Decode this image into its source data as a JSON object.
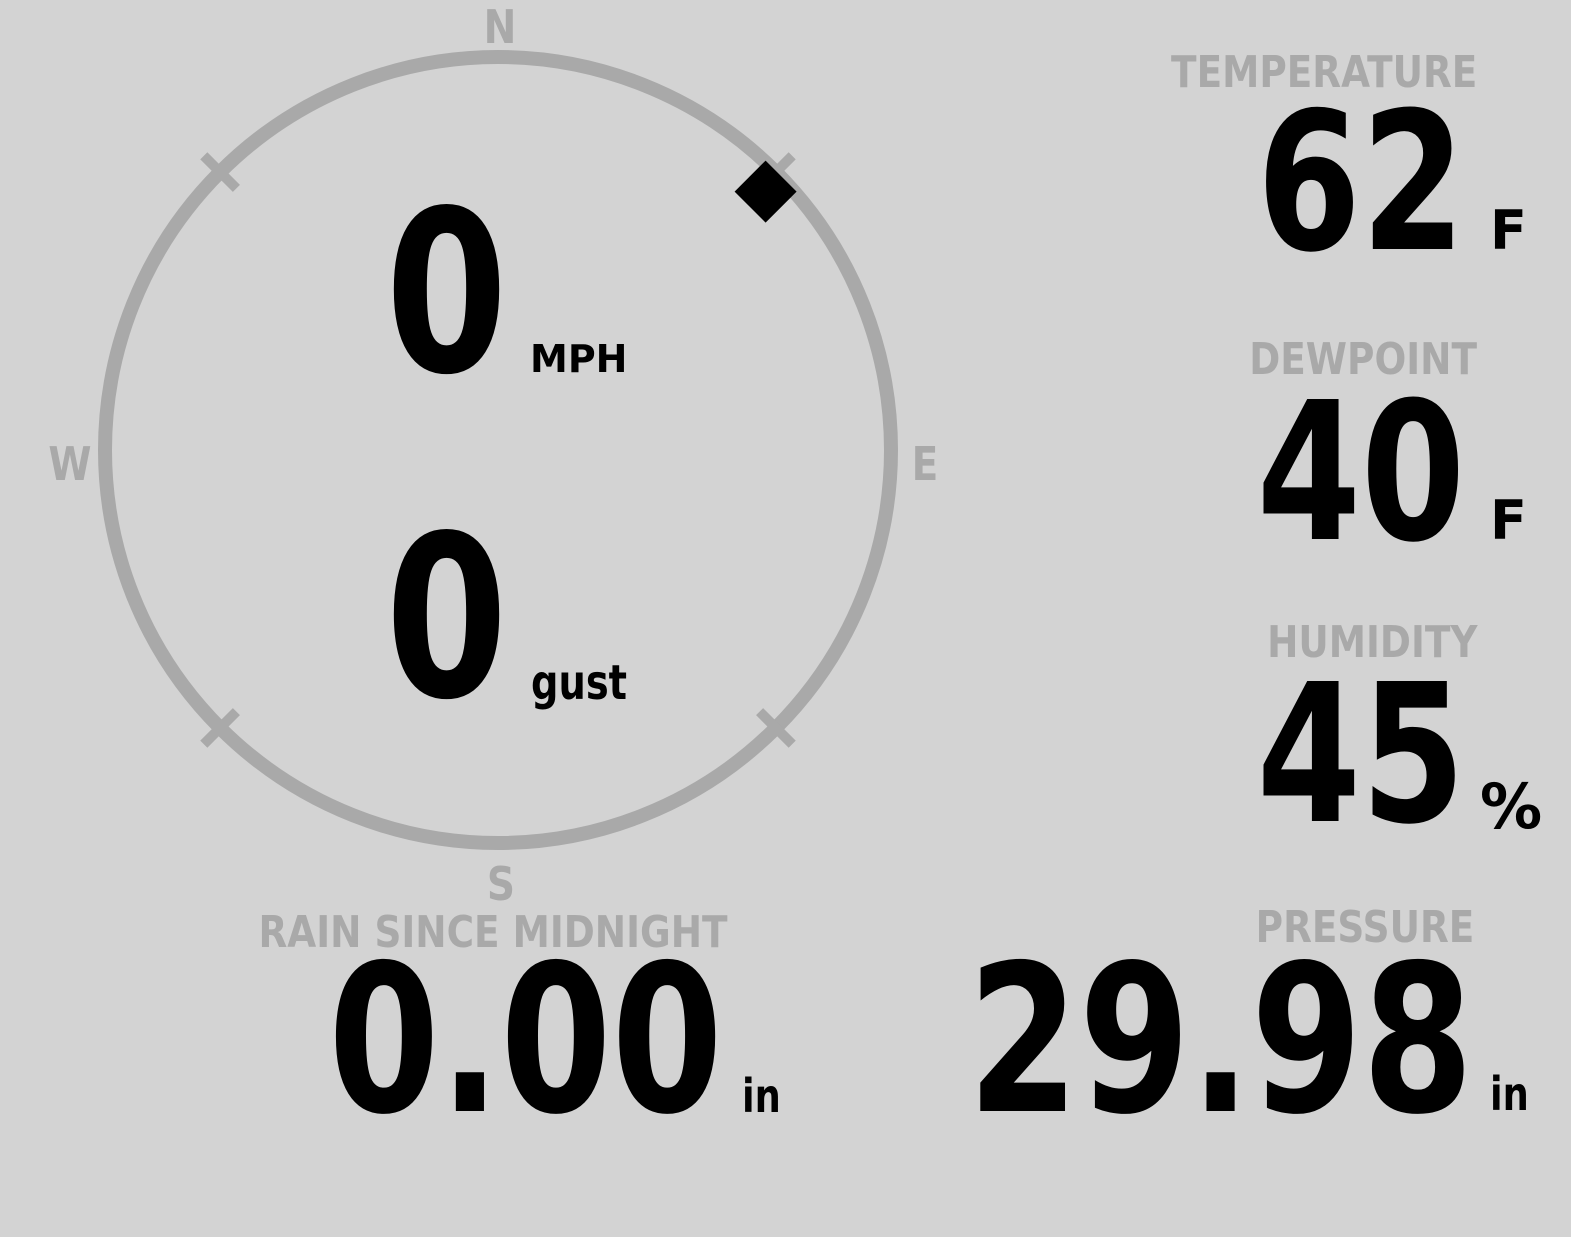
{
  "colors": {
    "background": "#d3d3d3",
    "muted": "#a9a9a9",
    "value": "#000000"
  },
  "wind": {
    "compass": {
      "north": "N",
      "east": "E",
      "south": "S",
      "west": "W"
    },
    "direction_deg": 46,
    "speed": {
      "value": "0",
      "unit": "MPH"
    },
    "gust": {
      "value": "0",
      "unit": "gust"
    }
  },
  "metrics": {
    "temperature": {
      "label": "TEMPERATURE",
      "value": "62",
      "unit": "F"
    },
    "dewpoint": {
      "label": "DEWPOINT",
      "value": "40",
      "unit": "F"
    },
    "humidity": {
      "label": "HUMIDITY",
      "value": "45",
      "unit": "%"
    },
    "rain": {
      "label": "RAIN SINCE MIDNIGHT",
      "value": "0.00",
      "unit": "in"
    },
    "pressure": {
      "label": "PRESSURE",
      "value": "29.98",
      "unit": "in"
    }
  }
}
